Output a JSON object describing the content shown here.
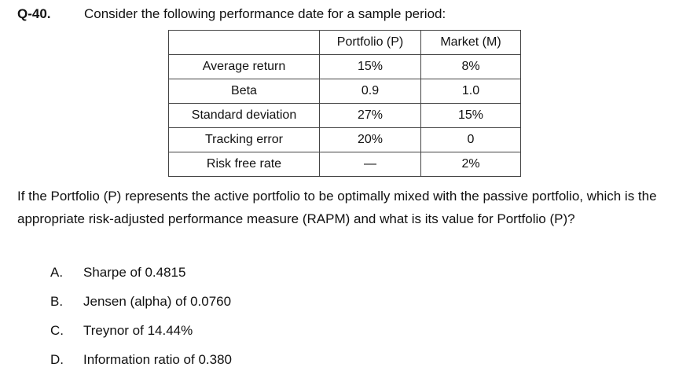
{
  "question": {
    "number": "Q-40.",
    "prompt": "Consider the following performance date for a sample period:"
  },
  "table": {
    "headers": [
      "",
      "Portfolio (P)",
      "Market (M)"
    ],
    "rows": [
      [
        "Average return",
        "15%",
        "8%"
      ],
      [
        "Beta",
        "0.9",
        "1.0"
      ],
      [
        "Standard deviation",
        "27%",
        "15%"
      ],
      [
        "Tracking error",
        "20%",
        "0"
      ],
      [
        "Risk free rate",
        "—",
        "2%"
      ]
    ]
  },
  "paragraph": "If the Portfolio (P) represents the active portfolio to be optimally mixed with the passive portfolio, which is the appropriate risk-adjusted performance measure (RAPM) and what is its value for Portfolio (P)?",
  "options": [
    {
      "letter": "A.",
      "text": "Sharpe of 0.4815"
    },
    {
      "letter": "B.",
      "text": "Jensen (alpha) of 0.0760"
    },
    {
      "letter": "C.",
      "text": "Treynor of 14.44%"
    },
    {
      "letter": "D.",
      "text": "Information ratio of 0.380"
    }
  ]
}
